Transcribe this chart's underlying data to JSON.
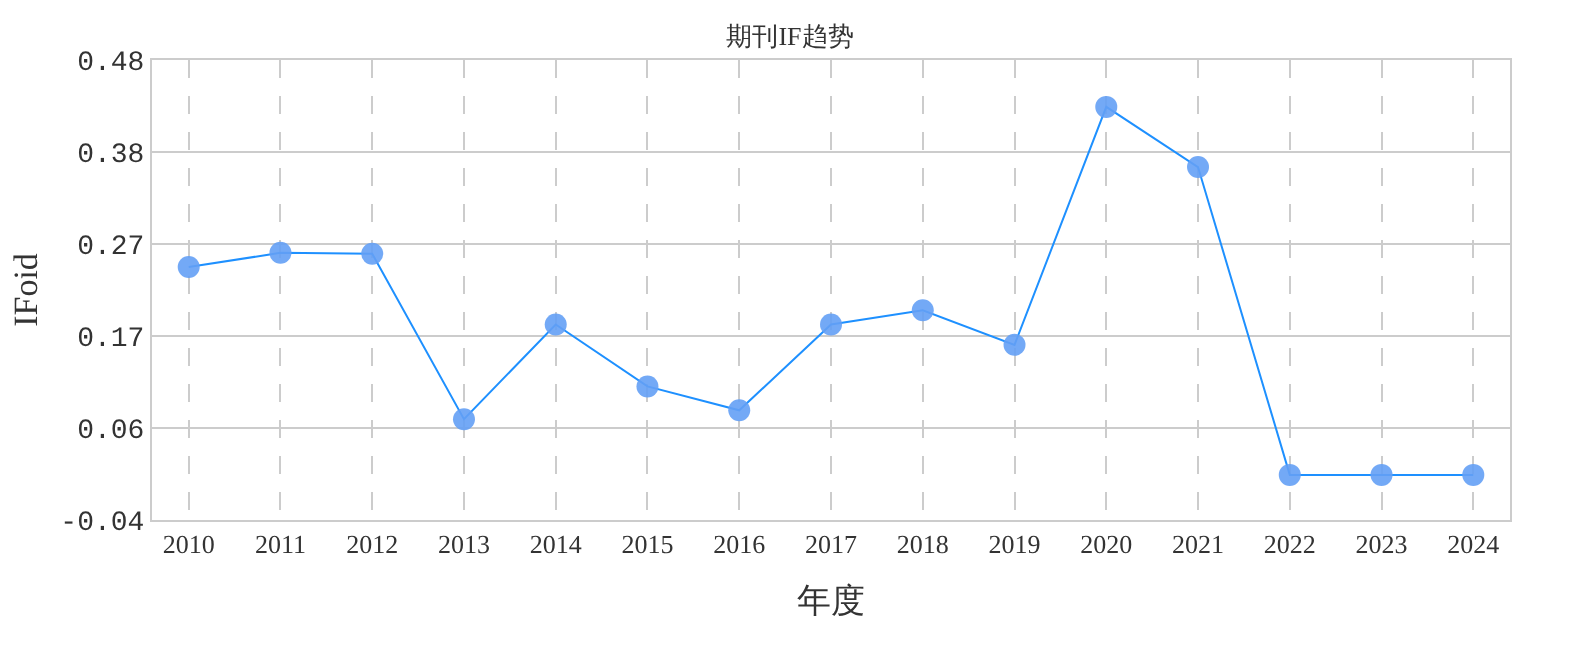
{
  "chart_data": {
    "type": "line",
    "title": "期刊IF趋势",
    "xlabel": "年度",
    "ylabel": "IFoid",
    "categories": [
      "2010",
      "2011",
      "2012",
      "2013",
      "2014",
      "2015",
      "2016",
      "2017",
      "2018",
      "2019",
      "2020",
      "2021",
      "2022",
      "2023",
      "2024"
    ],
    "series": [
      {
        "color": "#1e90ff",
        "values": [
          0.246,
          0.262,
          0.261,
          0.074,
          0.181,
          0.111,
          0.084,
          0.181,
          0.197,
          0.158,
          0.427,
          0.359,
          0.011,
          0.011,
          0.011
        ]
      }
    ],
    "ylim": [
      -0.04,
      0.48
    ],
    "yticks": [
      {
        "value": -0.04,
        "label": "-0.04"
      },
      {
        "value": 0.064,
        "label": "0.06"
      },
      {
        "value": 0.168,
        "label": "0.17"
      },
      {
        "value": 0.272,
        "label": "0.27"
      },
      {
        "value": 0.376,
        "label": "0.38"
      },
      {
        "value": 0.48,
        "label": "0.48"
      }
    ],
    "grid": true,
    "marker": "circle",
    "line_style": "solid"
  }
}
